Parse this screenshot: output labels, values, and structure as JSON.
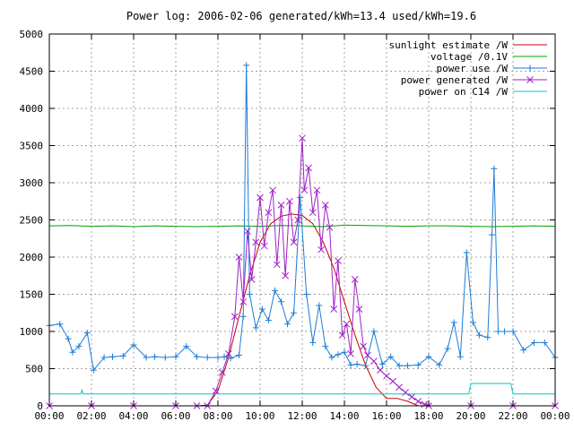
{
  "chart_data": {
    "type": "line",
    "title": "Power log: 2006-02-06 generated/kWh=13.4 used/kWh=19.6",
    "xlabel": "",
    "ylabel": "",
    "x_tick_labels": [
      "00:00",
      "02:00",
      "04:00",
      "06:00",
      "08:00",
      "10:00",
      "12:00",
      "14:00",
      "16:00",
      "18:00",
      "20:00",
      "22:00",
      "00:00"
    ],
    "y_ticks": [
      0,
      500,
      1000,
      1500,
      2000,
      2500,
      3000,
      3500,
      4000,
      4500,
      5000
    ],
    "xlim": [
      0,
      24
    ],
    "ylim": [
      0,
      5000
    ],
    "grid": true,
    "legend_position": "top-right",
    "series": [
      {
        "name": "sunlight estimate /W",
        "color": "#cc0000",
        "marker": "none",
        "x": [
          0,
          7.0,
          7.5,
          8.0,
          8.5,
          9.0,
          9.5,
          10.0,
          10.5,
          11.0,
          11.5,
          12.0,
          12.5,
          13.0,
          13.5,
          14.0,
          14.5,
          15.0,
          15.5,
          16.0,
          16.5,
          17.0,
          17.5,
          24
        ],
        "values": [
          0,
          0,
          10,
          200,
          650,
          1200,
          1750,
          2200,
          2450,
          2550,
          2580,
          2560,
          2450,
          2200,
          1850,
          1400,
          950,
          550,
          250,
          100,
          100,
          60,
          0,
          0
        ]
      },
      {
        "name": "voltage /0.1V",
        "color": "#00a000",
        "marker": "none",
        "x": [
          0,
          1,
          2,
          3,
          4,
          5,
          6,
          7,
          8,
          9,
          10,
          11,
          12,
          13,
          14,
          15,
          16,
          17,
          18,
          19,
          20,
          21,
          22,
          23,
          24
        ],
        "values": [
          2420,
          2425,
          2415,
          2420,
          2410,
          2420,
          2415,
          2410,
          2415,
          2420,
          2415,
          2425,
          2420,
          2410,
          2430,
          2425,
          2420,
          2415,
          2420,
          2420,
          2415,
          2410,
          2415,
          2420,
          2415
        ]
      },
      {
        "name": "power use /W",
        "color": "#1c7bd6",
        "marker": "plus",
        "x": [
          0.0,
          0.5,
          0.9,
          1.1,
          1.4,
          1.8,
          2.1,
          2.6,
          3.0,
          3.5,
          4.0,
          4.6,
          5.0,
          5.5,
          6.0,
          6.5,
          7.0,
          7.5,
          8.0,
          8.3,
          8.6,
          9.0,
          9.2,
          9.35,
          9.5,
          9.8,
          10.1,
          10.4,
          10.7,
          11.0,
          11.3,
          11.6,
          11.9,
          12.2,
          12.5,
          12.8,
          13.1,
          13.4,
          13.7,
          14.0,
          14.3,
          14.6,
          15.0,
          15.4,
          15.8,
          16.2,
          16.6,
          17.0,
          17.5,
          18.0,
          18.5,
          18.9,
          19.2,
          19.5,
          19.8,
          20.1,
          20.4,
          20.8,
          21.0,
          21.1,
          21.3,
          21.6,
          22.0,
          22.5,
          23.0,
          23.5,
          24.0
        ],
        "values": [
          1080,
          1100,
          900,
          720,
          800,
          980,
          480,
          650,
          660,
          670,
          820,
          650,
          660,
          650,
          660,
          800,
          660,
          650,
          650,
          660,
          640,
          680,
          1200,
          4580,
          1500,
          1050,
          1300,
          1150,
          1550,
          1400,
          1100,
          1250,
          2800,
          1500,
          850,
          1350,
          800,
          650,
          690,
          720,
          550,
          560,
          540,
          1000,
          560,
          660,
          540,
          540,
          550,
          660,
          550,
          770,
          1120,
          660,
          2060,
          1120,
          950,
          920,
          2300,
          3190,
          1000,
          1000,
          1000,
          750,
          850,
          850,
          650
        ]
      },
      {
        "name": "power generated /W",
        "color": "#a020c8",
        "marker": "cross",
        "x": [
          0.0,
          2.0,
          4.0,
          6.0,
          7.0,
          7.5,
          7.9,
          8.2,
          8.5,
          8.8,
          9.0,
          9.2,
          9.4,
          9.6,
          9.8,
          10.0,
          10.2,
          10.4,
          10.6,
          10.8,
          11.0,
          11.2,
          11.4,
          11.6,
          11.8,
          12.0,
          12.1,
          12.3,
          12.5,
          12.7,
          12.9,
          13.1,
          13.3,
          13.5,
          13.7,
          13.9,
          14.1,
          14.3,
          14.5,
          14.7,
          14.9,
          15.1,
          15.4,
          15.7,
          16.0,
          16.3,
          16.6,
          16.9,
          17.2,
          17.5,
          17.8,
          18.0,
          20.0,
          22.0,
          24.0
        ],
        "values": [
          0,
          0,
          0,
          0,
          0,
          0,
          200,
          450,
          700,
          1200,
          2000,
          1400,
          2350,
          1700,
          2200,
          2800,
          2150,
          2600,
          2900,
          1900,
          2700,
          1750,
          2750,
          2200,
          2500,
          3600,
          2900,
          3200,
          2600,
          2900,
          2100,
          2700,
          2400,
          1300,
          1950,
          950,
          1100,
          700,
          1700,
          1300,
          800,
          680,
          600,
          480,
          400,
          330,
          250,
          180,
          120,
          60,
          20,
          0,
          0,
          0,
          0
        ]
      },
      {
        "name": "power on C14 /W",
        "color": "#00c8c8",
        "marker": "none",
        "x": [
          0.0,
          1.5,
          1.55,
          1.6,
          6.0,
          12.0,
          18.0,
          19.9,
          20.0,
          21.9,
          22.0,
          24.0
        ],
        "values": [
          160,
          160,
          220,
          160,
          160,
          160,
          160,
          160,
          300,
          300,
          160,
          160
        ]
      }
    ]
  }
}
